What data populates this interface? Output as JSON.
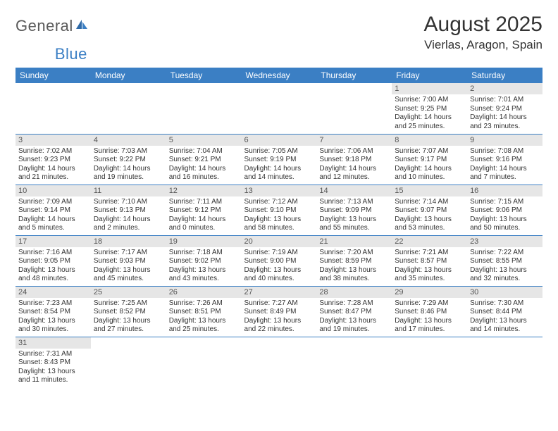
{
  "logo": {
    "part1": "General",
    "part2": "Blue"
  },
  "title": "August 2025",
  "location": "Vierlas, Aragon, Spain",
  "colors": {
    "header_bg": "#3b7fc4",
    "header_text": "#ffffff",
    "daynum_bg": "#e6e6e6",
    "border": "#3b7fc4",
    "body_text": "#333333",
    "logo_gray": "#5a5a5a",
    "logo_blue": "#3b7fc4"
  },
  "weekdays": [
    "Sunday",
    "Monday",
    "Tuesday",
    "Wednesday",
    "Thursday",
    "Friday",
    "Saturday"
  ],
  "weeks": [
    [
      null,
      null,
      null,
      null,
      null,
      {
        "n": "1",
        "sr": "Sunrise: 7:00 AM",
        "ss": "Sunset: 9:25 PM",
        "d1": "Daylight: 14 hours",
        "d2": "and 25 minutes."
      },
      {
        "n": "2",
        "sr": "Sunrise: 7:01 AM",
        "ss": "Sunset: 9:24 PM",
        "d1": "Daylight: 14 hours",
        "d2": "and 23 minutes."
      }
    ],
    [
      {
        "n": "3",
        "sr": "Sunrise: 7:02 AM",
        "ss": "Sunset: 9:23 PM",
        "d1": "Daylight: 14 hours",
        "d2": "and 21 minutes."
      },
      {
        "n": "4",
        "sr": "Sunrise: 7:03 AM",
        "ss": "Sunset: 9:22 PM",
        "d1": "Daylight: 14 hours",
        "d2": "and 19 minutes."
      },
      {
        "n": "5",
        "sr": "Sunrise: 7:04 AM",
        "ss": "Sunset: 9:21 PM",
        "d1": "Daylight: 14 hours",
        "d2": "and 16 minutes."
      },
      {
        "n": "6",
        "sr": "Sunrise: 7:05 AM",
        "ss": "Sunset: 9:19 PM",
        "d1": "Daylight: 14 hours",
        "d2": "and 14 minutes."
      },
      {
        "n": "7",
        "sr": "Sunrise: 7:06 AM",
        "ss": "Sunset: 9:18 PM",
        "d1": "Daylight: 14 hours",
        "d2": "and 12 minutes."
      },
      {
        "n": "8",
        "sr": "Sunrise: 7:07 AM",
        "ss": "Sunset: 9:17 PM",
        "d1": "Daylight: 14 hours",
        "d2": "and 10 minutes."
      },
      {
        "n": "9",
        "sr": "Sunrise: 7:08 AM",
        "ss": "Sunset: 9:16 PM",
        "d1": "Daylight: 14 hours",
        "d2": "and 7 minutes."
      }
    ],
    [
      {
        "n": "10",
        "sr": "Sunrise: 7:09 AM",
        "ss": "Sunset: 9:14 PM",
        "d1": "Daylight: 14 hours",
        "d2": "and 5 minutes."
      },
      {
        "n": "11",
        "sr": "Sunrise: 7:10 AM",
        "ss": "Sunset: 9:13 PM",
        "d1": "Daylight: 14 hours",
        "d2": "and 2 minutes."
      },
      {
        "n": "12",
        "sr": "Sunrise: 7:11 AM",
        "ss": "Sunset: 9:12 PM",
        "d1": "Daylight: 14 hours",
        "d2": "and 0 minutes."
      },
      {
        "n": "13",
        "sr": "Sunrise: 7:12 AM",
        "ss": "Sunset: 9:10 PM",
        "d1": "Daylight: 13 hours",
        "d2": "and 58 minutes."
      },
      {
        "n": "14",
        "sr": "Sunrise: 7:13 AM",
        "ss": "Sunset: 9:09 PM",
        "d1": "Daylight: 13 hours",
        "d2": "and 55 minutes."
      },
      {
        "n": "15",
        "sr": "Sunrise: 7:14 AM",
        "ss": "Sunset: 9:07 PM",
        "d1": "Daylight: 13 hours",
        "d2": "and 53 minutes."
      },
      {
        "n": "16",
        "sr": "Sunrise: 7:15 AM",
        "ss": "Sunset: 9:06 PM",
        "d1": "Daylight: 13 hours",
        "d2": "and 50 minutes."
      }
    ],
    [
      {
        "n": "17",
        "sr": "Sunrise: 7:16 AM",
        "ss": "Sunset: 9:05 PM",
        "d1": "Daylight: 13 hours",
        "d2": "and 48 minutes."
      },
      {
        "n": "18",
        "sr": "Sunrise: 7:17 AM",
        "ss": "Sunset: 9:03 PM",
        "d1": "Daylight: 13 hours",
        "d2": "and 45 minutes."
      },
      {
        "n": "19",
        "sr": "Sunrise: 7:18 AM",
        "ss": "Sunset: 9:02 PM",
        "d1": "Daylight: 13 hours",
        "d2": "and 43 minutes."
      },
      {
        "n": "20",
        "sr": "Sunrise: 7:19 AM",
        "ss": "Sunset: 9:00 PM",
        "d1": "Daylight: 13 hours",
        "d2": "and 40 minutes."
      },
      {
        "n": "21",
        "sr": "Sunrise: 7:20 AM",
        "ss": "Sunset: 8:59 PM",
        "d1": "Daylight: 13 hours",
        "d2": "and 38 minutes."
      },
      {
        "n": "22",
        "sr": "Sunrise: 7:21 AM",
        "ss": "Sunset: 8:57 PM",
        "d1": "Daylight: 13 hours",
        "d2": "and 35 minutes."
      },
      {
        "n": "23",
        "sr": "Sunrise: 7:22 AM",
        "ss": "Sunset: 8:55 PM",
        "d1": "Daylight: 13 hours",
        "d2": "and 32 minutes."
      }
    ],
    [
      {
        "n": "24",
        "sr": "Sunrise: 7:23 AM",
        "ss": "Sunset: 8:54 PM",
        "d1": "Daylight: 13 hours",
        "d2": "and 30 minutes."
      },
      {
        "n": "25",
        "sr": "Sunrise: 7:25 AM",
        "ss": "Sunset: 8:52 PM",
        "d1": "Daylight: 13 hours",
        "d2": "and 27 minutes."
      },
      {
        "n": "26",
        "sr": "Sunrise: 7:26 AM",
        "ss": "Sunset: 8:51 PM",
        "d1": "Daylight: 13 hours",
        "d2": "and 25 minutes."
      },
      {
        "n": "27",
        "sr": "Sunrise: 7:27 AM",
        "ss": "Sunset: 8:49 PM",
        "d1": "Daylight: 13 hours",
        "d2": "and 22 minutes."
      },
      {
        "n": "28",
        "sr": "Sunrise: 7:28 AM",
        "ss": "Sunset: 8:47 PM",
        "d1": "Daylight: 13 hours",
        "d2": "and 19 minutes."
      },
      {
        "n": "29",
        "sr": "Sunrise: 7:29 AM",
        "ss": "Sunset: 8:46 PM",
        "d1": "Daylight: 13 hours",
        "d2": "and 17 minutes."
      },
      {
        "n": "30",
        "sr": "Sunrise: 7:30 AM",
        "ss": "Sunset: 8:44 PM",
        "d1": "Daylight: 13 hours",
        "d2": "and 14 minutes."
      }
    ],
    [
      {
        "n": "31",
        "sr": "Sunrise: 7:31 AM",
        "ss": "Sunset: 8:43 PM",
        "d1": "Daylight: 13 hours",
        "d2": "and 11 minutes."
      },
      null,
      null,
      null,
      null,
      null,
      null
    ]
  ]
}
